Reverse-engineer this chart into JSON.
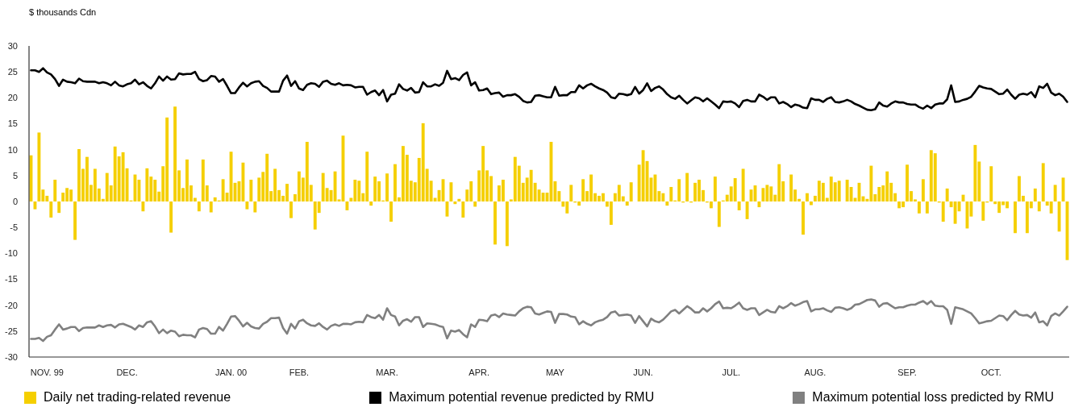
{
  "chart_data": {
    "type": "bar",
    "ylabel": "$ thousands Cdn",
    "legend": "bottom",
    "ylim": [
      -30,
      30
    ],
    "yticks": [
      -30,
      -25,
      -20,
      -15,
      -10,
      -5,
      0,
      5,
      10,
      15,
      20,
      25,
      30
    ],
    "categories": [
      null,
      null,
      null,
      null,
      "NOV. 99",
      null,
      null,
      null,
      null,
      null,
      null,
      null,
      null,
      null,
      null,
      null,
      null,
      null,
      null,
      null,
      null,
      null,
      null,
      null,
      "DEC.",
      null,
      null,
      null,
      null,
      null,
      null,
      null,
      null,
      null,
      null,
      null,
      null,
      null,
      null,
      null,
      null,
      null,
      null,
      null,
      null,
      null,
      null,
      null,
      null,
      null,
      "JAN. 00",
      null,
      null,
      null,
      null,
      null,
      null,
      null,
      null,
      null,
      null,
      null,
      null,
      null,
      null,
      null,
      null,
      "FEB.",
      null,
      null,
      null,
      null,
      null,
      null,
      null,
      null,
      null,
      null,
      null,
      null,
      null,
      null,
      null,
      null,
      null,
      null,
      null,
      null,
      null,
      "MAR.",
      null,
      null,
      null,
      null,
      null,
      null,
      null,
      null,
      null,
      null,
      null,
      null,
      null,
      null,
      null,
      null,
      null,
      null,
      null,
      null,
      null,
      null,
      "APR.",
      null,
      null,
      null,
      null,
      null,
      null,
      null,
      null,
      null,
      null,
      null,
      null,
      null,
      null,
      null,
      null,
      null,
      null,
      "MAY",
      null,
      null,
      null,
      null,
      null,
      null,
      null,
      null,
      null,
      null,
      null,
      null,
      null,
      null,
      null,
      null,
      null,
      null,
      null,
      null,
      null,
      "JUN.",
      null,
      null,
      null,
      null,
      null,
      null,
      null,
      null,
      null,
      null,
      null,
      null,
      null,
      null,
      null,
      null,
      null,
      null,
      null,
      null,
      null,
      "JUL.",
      null,
      null,
      null,
      null,
      null,
      null,
      null,
      null,
      null,
      null,
      null,
      null,
      null,
      null,
      null,
      null,
      null,
      null,
      null,
      null,
      "AUG.",
      null,
      null,
      null,
      null,
      null,
      null,
      null,
      null,
      null,
      null,
      null,
      null,
      null,
      null,
      null,
      null,
      null,
      null,
      null,
      null,
      null,
      null,
      "SEP.",
      null,
      null,
      null,
      null,
      null,
      null,
      null,
      null,
      null,
      null,
      null,
      null,
      null,
      null,
      null,
      null,
      null,
      null,
      null,
      null,
      "OCT.",
      null,
      null,
      null,
      null,
      null,
      null,
      null,
      null,
      null,
      null,
      null,
      null,
      null,
      null,
      null,
      null,
      null,
      null,
      null
    ],
    "series": [
      {
        "name": "Daily net trading-related revenue",
        "color": "#f5cf00",
        "values": [
          8.9,
          -1.5,
          13.3,
          2.3,
          1.1,
          -3.1,
          4.2,
          -2.2,
          1.7,
          2.6,
          2.3,
          -7.4,
          10.1,
          6.3,
          8.6,
          3.2,
          6.3,
          2.5,
          0.5,
          5.5,
          3.1,
          10.6,
          8.7,
          9.5,
          6.4,
          0.2,
          5.2,
          4.2,
          -1.9,
          6.4,
          4.8,
          4.2,
          1.9,
          6.8,
          16.2,
          -6.0,
          18.3,
          6.0,
          2.6,
          8.1,
          3.1,
          0.7,
          -1.9,
          8.1,
          3.1,
          -2.1,
          0.8,
          0.2,
          4.3,
          1.7,
          9.6,
          3.6,
          3.9,
          7.5,
          -1.5,
          4.2,
          -2.1,
          4.6,
          5.7,
          9.2,
          2.0,
          6.3,
          2.2,
          1.1,
          3.4,
          -3.2,
          1.4,
          5.8,
          4.6,
          11.5,
          3.2,
          -5.4,
          -2.2,
          5.5,
          2.6,
          2.2,
          5.8,
          0.4,
          12.7,
          -1.7,
          0.7,
          4.2,
          4.0,
          1.6,
          9.6,
          -0.8,
          4.8,
          3.9,
          0.2,
          5.4,
          -3.9,
          7.2,
          0.8,
          10.7,
          9.0,
          4.0,
          3.7,
          8.4,
          15.1,
          6.3,
          4.0,
          0.7,
          2.2,
          4.3,
          -2.9,
          3.7,
          -0.5,
          0.5,
          -3.1,
          2.3,
          3.9,
          -1.0,
          6.0,
          10.7,
          6.0,
          4.9,
          -8.3,
          3.1,
          4.2,
          -8.6,
          0.4,
          8.6,
          6.9,
          3.6,
          4.6,
          6.1,
          3.6,
          2.3,
          1.7,
          1.7,
          11.5,
          3.9,
          2.0,
          -1.0,
          -2.3,
          3.2,
          -0.2,
          -0.8,
          4.3,
          2.0,
          5.2,
          1.6,
          1.1,
          1.6,
          -1.0,
          -4.5,
          1.6,
          3.2,
          1.0,
          -0.8,
          3.7,
          0,
          7.1,
          9.9,
          7.8,
          4.6,
          5.2,
          2.0,
          1.6,
          -0.8,
          2.8,
          0.2,
          4.3,
          -0.2,
          5.5,
          -0.2,
          3.6,
          4.2,
          2.2,
          -0.2,
          -1.3,
          4.8,
          -4.9,
          0.2,
          1.3,
          2.9,
          4.5,
          -1.7,
          6.3,
          -3.4,
          2.3,
          3.1,
          -1.1,
          2.6,
          3.2,
          2.9,
          1.3,
          7.2,
          3.9,
          0,
          5.2,
          2.3,
          0.5,
          -6.4,
          1.6,
          -0.7,
          1.1,
          4.0,
          3.6,
          0.7,
          4.8,
          3.7,
          4.0,
          0,
          4.2,
          2.8,
          0.7,
          3.6,
          1.0,
          0.5,
          6.9,
          1.4,
          2.8,
          3.1,
          5.8,
          3.6,
          1.6,
          -1.3,
          -1.1,
          7.1,
          2.0,
          0.4,
          -2.3,
          4.3,
          -2.3,
          9.9,
          9.3,
          -0.2,
          -3.9,
          2.5,
          -1.1,
          -4.3,
          -1.9,
          1.3,
          -5.2,
          -2.9,
          10.9,
          7.7,
          -3.7,
          -0.2,
          6.8,
          -0.5,
          -2.2,
          -0.7,
          -1.3,
          0,
          -6.1,
          4.9,
          1.1,
          -6.1,
          -1.3,
          2.5,
          -1.9,
          7.4,
          -0.8,
          -2.3,
          3.2,
          -5.8,
          4.6,
          -11.3
        ]
      },
      {
        "name": "Maximum potential revenue predicted by RMU",
        "type": "line",
        "color": "#000000",
        "values": [
          25.3,
          25.3,
          25.0,
          25.7,
          24.9,
          24.5,
          23.6,
          22.3,
          23.5,
          23.1,
          23.0,
          22.8,
          23.7,
          23.2,
          23.1,
          23.1,
          23.1,
          22.8,
          23.0,
          22.8,
          22.4,
          23.1,
          22.4,
          22.2,
          22.6,
          22.8,
          23.5,
          22.6,
          23.0,
          22.3,
          21.8,
          22.8,
          24.1,
          23.3,
          24.1,
          23.5,
          23.6,
          24.7,
          24.5,
          24.6,
          24.6,
          25.0,
          23.6,
          23.2,
          23.4,
          24.2,
          24.1,
          23.1,
          23.6,
          22.3,
          20.9,
          20.9,
          22.0,
          22.9,
          22.2,
          22.8,
          23.1,
          23.2,
          22.3,
          21.9,
          21.2,
          21.2,
          21.2,
          23.3,
          24.3,
          22.3,
          23.2,
          21.8,
          21.5,
          22.5,
          22.8,
          22.7,
          22.1,
          23.1,
          23.3,
          22.7,
          22.5,
          22.8,
          22.4,
          22.5,
          22.4,
          22.0,
          22.1,
          22.1,
          20.6,
          21.1,
          21.4,
          20.5,
          21.5,
          19.3,
          20.6,
          20.8,
          22.6,
          21.7,
          21.4,
          21.9,
          21.0,
          21.1,
          23.0,
          22.2,
          22.2,
          22.6,
          22.3,
          22.9,
          25.2,
          23.6,
          23.8,
          23.4,
          24.4,
          24.9,
          22.4,
          23.0,
          21.4,
          21.5,
          21.8,
          20.7,
          20.9,
          21.0,
          20.2,
          20.5,
          20.5,
          20.7,
          20.2,
          19.4,
          19.1,
          19.2,
          20.4,
          20.5,
          20.3,
          20.1,
          20.1,
          22.1,
          20.4,
          20.5,
          20.5,
          21.1,
          21.1,
          22.4,
          21.8,
          22.4,
          22.7,
          22.2,
          21.8,
          21.5,
          21.0,
          20.1,
          19.9,
          20.8,
          20.7,
          20.5,
          20.7,
          22.1,
          20.8,
          21.5,
          22.8,
          21.3,
          21.9,
          22.2,
          21.6,
          20.7,
          20.1,
          19.8,
          20.4,
          19.6,
          18.9,
          19.5,
          20.1,
          19.9,
          19.3,
          19.9,
          19.3,
          18.7,
          18.0,
          19.3,
          19.2,
          19.3,
          18.9,
          18.2,
          19.4,
          19.6,
          19.3,
          19.3,
          20.6,
          20.2,
          19.6,
          20.1,
          20.1,
          18.9,
          19.2,
          18.8,
          18.2,
          18.7,
          18.5,
          18.1,
          18.0,
          19.9,
          19.6,
          19.6,
          19.2,
          19.8,
          20.1,
          19.2,
          19.1,
          19.3,
          19.6,
          19.3,
          18.8,
          18.5,
          18.1,
          17.7,
          17.6,
          17.8,
          19.1,
          18.5,
          18.3,
          18.9,
          19.3,
          19.1,
          19.1,
          18.8,
          18.7,
          18.7,
          18.2,
          17.9,
          18.5,
          18.0,
          18.7,
          18.9,
          18.9,
          19.7,
          22.4,
          19.2,
          19.3,
          19.6,
          19.8,
          20.2,
          21.2,
          22.3,
          22.0,
          21.8,
          21.7,
          21.2,
          20.7,
          20.8,
          21.6,
          20.6,
          19.8,
          20.6,
          20.8,
          20.6,
          21.1,
          20.1,
          22.2,
          21.9,
          22.7,
          21.0,
          20.5,
          20.8,
          20.2,
          19.2
        ]
      },
      {
        "name": "Maximum potential loss predicted by RMU",
        "type": "line",
        "color": "#808080",
        "values": [
          -26.5,
          -26.5,
          -26.3,
          -26.9,
          -26.1,
          -25.8,
          -24.7,
          -23.7,
          -24.7,
          -24.5,
          -24.2,
          -24.2,
          -25.0,
          -24.4,
          -24.3,
          -24.3,
          -24.3,
          -23.9,
          -24.2,
          -23.9,
          -23.8,
          -24.3,
          -23.7,
          -23.6,
          -23.9,
          -24.2,
          -24.7,
          -23.9,
          -24.2,
          -23.3,
          -23.1,
          -24.1,
          -25.4,
          -24.7,
          -25.4,
          -24.9,
          -25.1,
          -26.0,
          -25.7,
          -25.8,
          -25.8,
          -26.2,
          -24.7,
          -24.4,
          -24.6,
          -25.5,
          -25.5,
          -24.2,
          -24.9,
          -23.6,
          -22.2,
          -22.1,
          -23.0,
          -24.1,
          -23.4,
          -24.1,
          -24.4,
          -24.5,
          -23.6,
          -23.2,
          -22.5,
          -22.5,
          -22.4,
          -24.4,
          -25.5,
          -23.6,
          -24.5,
          -23.1,
          -22.8,
          -23.5,
          -23.9,
          -24.0,
          -23.5,
          -24.2,
          -24.7,
          -24.0,
          -23.7,
          -24.0,
          -23.6,
          -23.6,
          -23.7,
          -23.3,
          -23.2,
          -23.3,
          -21.9,
          -22.3,
          -22.5,
          -21.9,
          -22.8,
          -20.6,
          -21.9,
          -22.2,
          -23.9,
          -23.0,
          -22.7,
          -23.2,
          -22.3,
          -22.3,
          -24.2,
          -23.5,
          -23.6,
          -23.7,
          -24.0,
          -24.2,
          -26.4,
          -24.9,
          -25.1,
          -24.8,
          -25.6,
          -26.2,
          -23.7,
          -24.2,
          -22.8,
          -22.9,
          -23.1,
          -22.0,
          -21.8,
          -22.3,
          -21.6,
          -21.8,
          -21.9,
          -22.0,
          -21.2,
          -20.6,
          -20.3,
          -20.4,
          -21.6,
          -21.8,
          -21.5,
          -21.2,
          -21.3,
          -23.4,
          -21.7,
          -21.7,
          -21.8,
          -22.2,
          -22.3,
          -23.7,
          -23.1,
          -23.6,
          -23.9,
          -23.3,
          -23.0,
          -22.8,
          -22.3,
          -21.4,
          -21.2,
          -22.0,
          -21.9,
          -21.8,
          -22.0,
          -23.4,
          -22.1,
          -23.1,
          -24.1,
          -22.6,
          -23.1,
          -23.3,
          -22.8,
          -22.0,
          -21.2,
          -20.9,
          -21.6,
          -20.9,
          -20.2,
          -20.7,
          -21.4,
          -21.4,
          -20.6,
          -21.2,
          -20.6,
          -19.8,
          -19.3,
          -20.6,
          -20.5,
          -20.6,
          -20.1,
          -19.5,
          -20.6,
          -20.9,
          -20.6,
          -20.6,
          -21.9,
          -21.4,
          -20.9,
          -21.3,
          -21.4,
          -20.2,
          -20.6,
          -20.2,
          -19.6,
          -20.1,
          -19.8,
          -19.4,
          -19.2,
          -21.2,
          -20.8,
          -20.8,
          -20.6,
          -21.0,
          -21.3,
          -20.5,
          -20.4,
          -20.6,
          -20.9,
          -20.6,
          -19.9,
          -19.8,
          -19.4,
          -19.0,
          -18.9,
          -19.1,
          -20.3,
          -19.7,
          -19.6,
          -20.1,
          -20.6,
          -20.4,
          -20.4,
          -20.1,
          -19.9,
          -19.9,
          -19.5,
          -19.2,
          -19.8,
          -19.2,
          -20.1,
          -20.2,
          -20.2,
          -20.9,
          -23.6,
          -20.4,
          -20.6,
          -20.8,
          -21.2,
          -21.6,
          -22.5,
          -23.5,
          -23.3,
          -23.1,
          -23.0,
          -22.5,
          -22.0,
          -22.1,
          -22.9,
          -21.9,
          -21.1,
          -21.8,
          -22.0,
          -21.9,
          -22.4,
          -21.4,
          -23.3,
          -23.1,
          -23.9,
          -22.1,
          -21.6,
          -22.0,
          -21.2,
          -20.3
        ]
      }
    ]
  }
}
